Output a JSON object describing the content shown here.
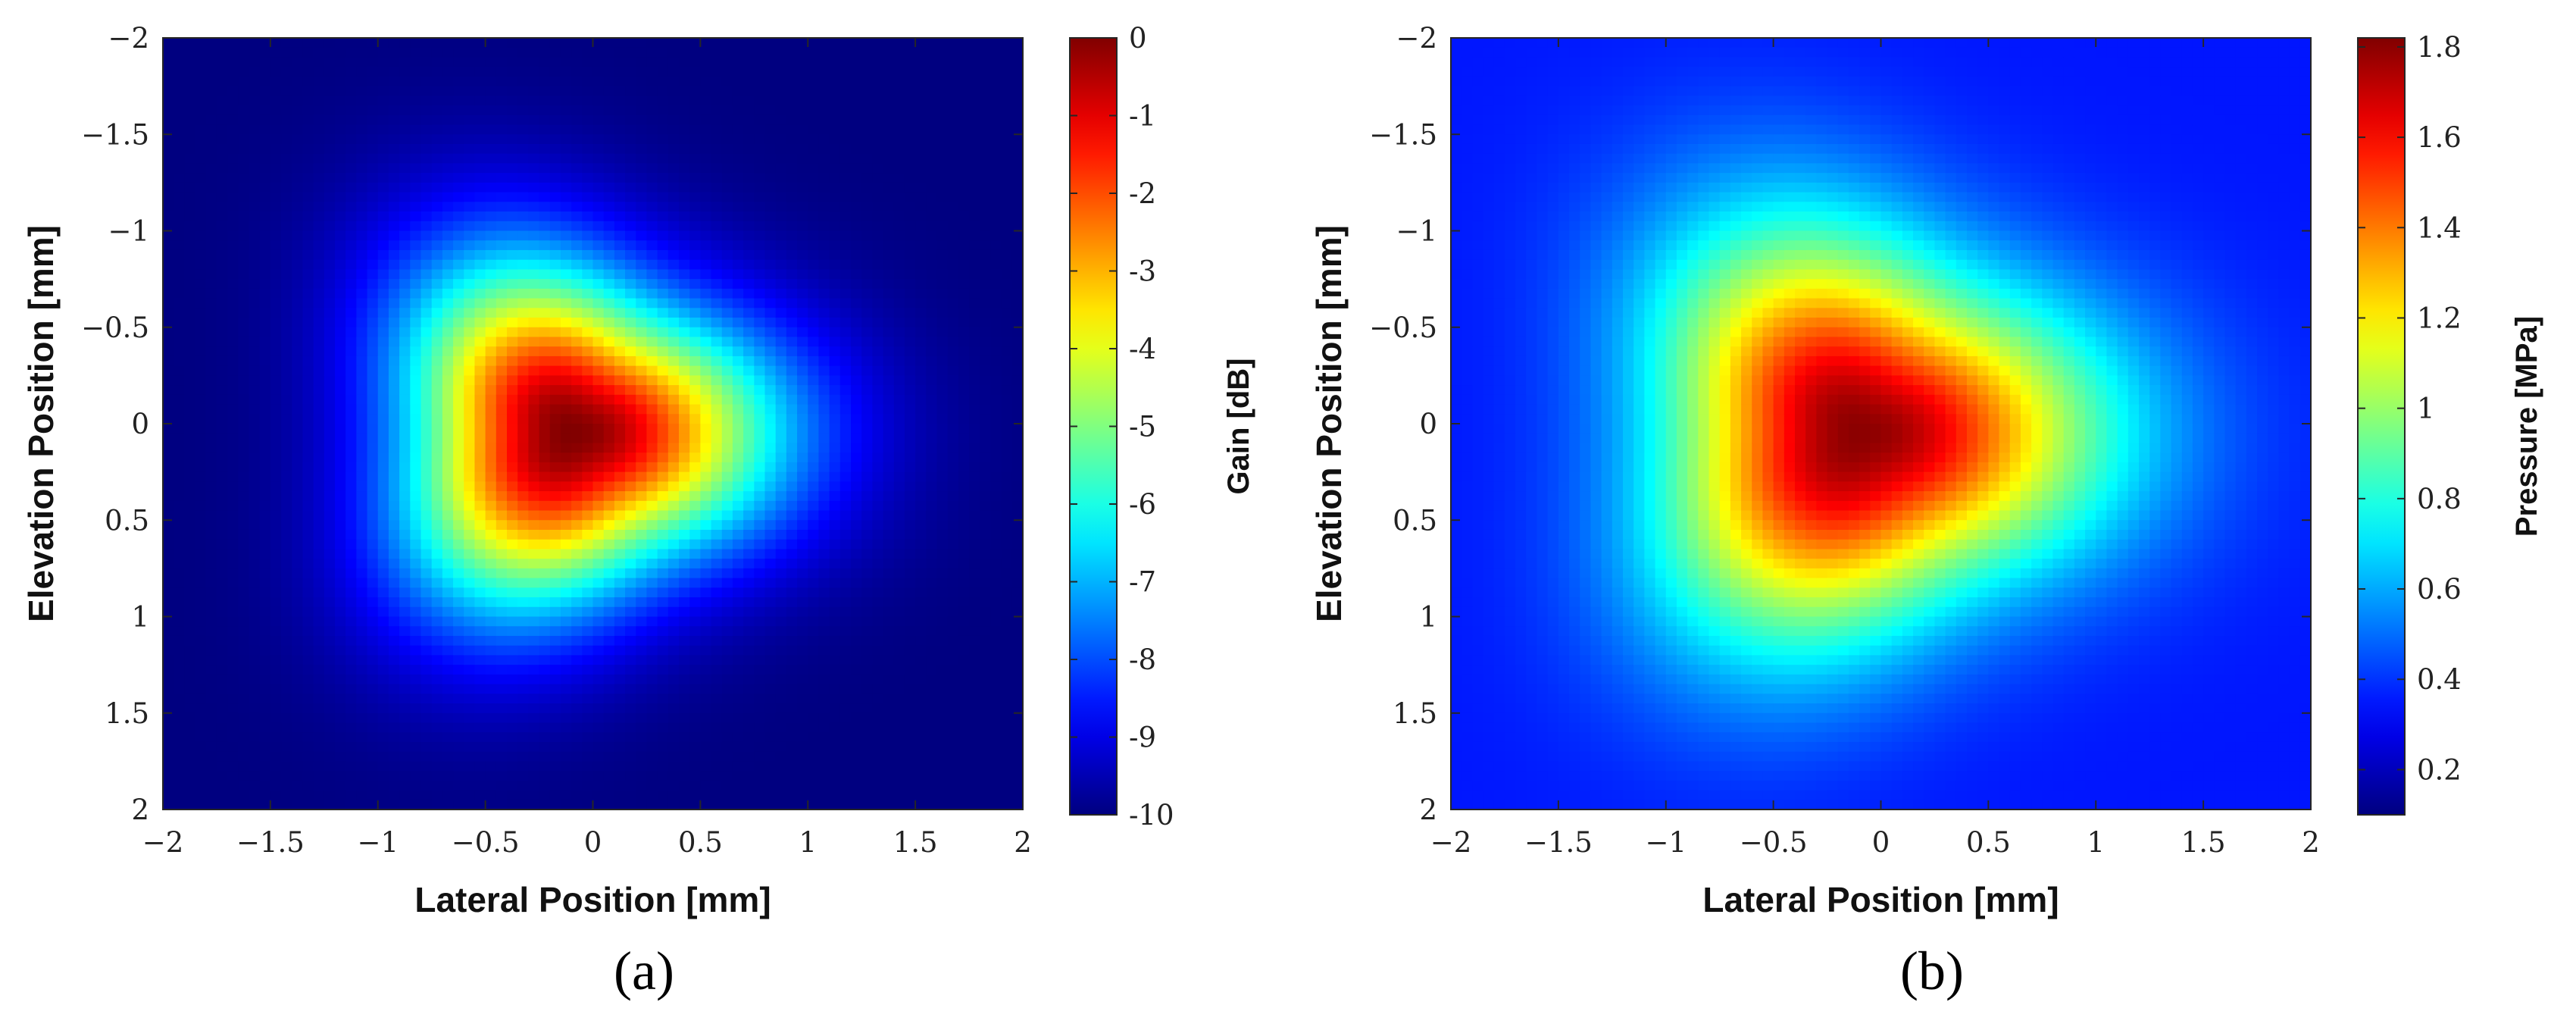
{
  "chart_data": [
    {
      "type": "heatmap",
      "caption": "(a)",
      "xlabel": "Lateral Position [mm]",
      "ylabel": "Elevation Position [mm]",
      "xlim": [
        -2,
        2
      ],
      "ylim": [
        -2,
        2
      ],
      "y_axis_reversed": true,
      "xticks": [
        "−2",
        "−1.5",
        "−1",
        "−0.5",
        "0",
        "0.5",
        "1",
        "1.5",
        "2"
      ],
      "yticks": [
        "−2",
        "−1.5",
        "−1",
        "−0.5",
        "0",
        "0.5",
        "1",
        "1.5",
        "2"
      ],
      "colorbar": {
        "label": "Gain [dB]",
        "range": [
          -10,
          0
        ],
        "ticks": [
          "0",
          "-1",
          "-2",
          "-3",
          "-4",
          "-5",
          "-6",
          "-7",
          "-8",
          "-9",
          "-10"
        ],
        "colormap": "jet"
      },
      "field": {
        "peak_x": -0.1,
        "peak_y": 0.05,
        "peak_value": 0,
        "background_value": -10,
        "half_width_mm": 1.2
      }
    },
    {
      "type": "heatmap",
      "caption": "(b)",
      "xlabel": "Lateral Position [mm]",
      "ylabel": "Elevation Position [mm]",
      "xlim": [
        -2,
        2
      ],
      "ylim": [
        -2,
        2
      ],
      "y_axis_reversed": true,
      "xticks": [
        "−2",
        "−1.5",
        "−1",
        "−0.5",
        "0",
        "0.5",
        "1",
        "1.5",
        "2"
      ],
      "yticks": [
        "−2",
        "−1.5",
        "−1",
        "−0.5",
        "0",
        "0.5",
        "1",
        "1.5",
        "2"
      ],
      "colorbar": {
        "label": "Pressure [MPa]",
        "range": [
          0.1,
          1.82
        ],
        "ticks": [
          "1.8",
          "1.6",
          "1.4",
          "1.2",
          "1",
          "0.8",
          "0.6",
          "0.4",
          "0.2"
        ],
        "tick_values": [
          1.8,
          1.6,
          1.4,
          1.2,
          1.0,
          0.8,
          0.6,
          0.4,
          0.2
        ],
        "colormap": "jet"
      },
      "field": {
        "peak_x": -0.1,
        "peak_y": 0.05,
        "peak_value": 1.8,
        "background_value": 0.35,
        "half_width_mm": 1.4
      }
    }
  ]
}
